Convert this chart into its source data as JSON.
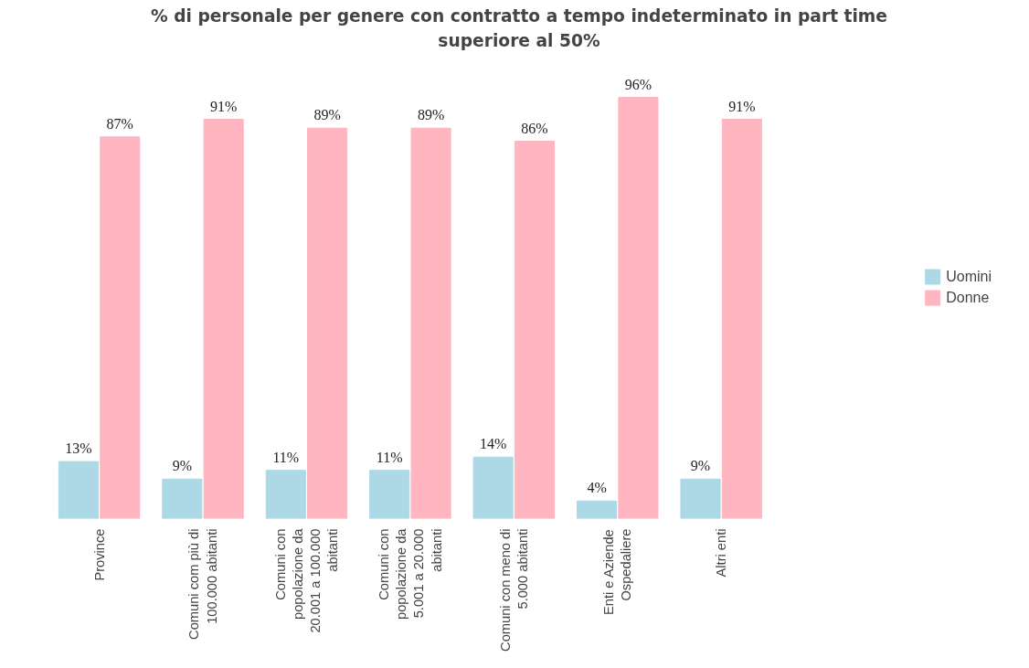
{
  "chart_data": {
    "type": "bar",
    "title": "% di personale per genere con contratto a tempo indeterminato in part time superiore al 50%",
    "categories": [
      "Province",
      "Comuni com più di 100.000 abitanti",
      "Comuni con popolazione da 20.001 a 100.000 abitanti",
      "Comuni con popolazione da 5.001 a 20.000 abitanti",
      "Comuni con meno di 5.000 abitanti",
      "Enti e Aziende Ospedaliere",
      "Altri enti"
    ],
    "series": [
      {
        "name": "Uomini",
        "color": "#add8e6",
        "values": [
          13,
          9,
          11,
          11,
          14,
          4,
          9
        ],
        "value_labels": [
          "13%",
          "9%",
          "11%",
          "11%",
          "14%",
          "4%",
          "9%"
        ]
      },
      {
        "name": "Donne",
        "color": "#ffb6c1",
        "values": [
          87,
          91,
          89,
          89,
          86,
          96,
          91
        ],
        "value_labels": [
          "87%",
          "91%",
          "89%",
          "89%",
          "86%",
          "96%",
          "91%"
        ]
      }
    ],
    "legend": "right",
    "grid": false
  }
}
